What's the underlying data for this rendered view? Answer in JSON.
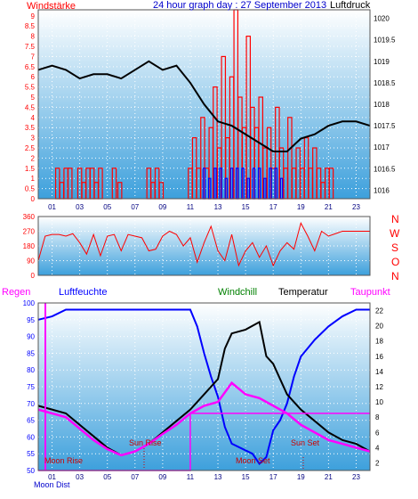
{
  "colors": {
    "wind_red": "#ff0000",
    "wind_blue": "#0000ff",
    "humidity_blue": "#0000ff",
    "dewpoint_magenta": "#ff00ff",
    "windchill_green": "#008000",
    "temperature_black": "#000000",
    "title_blue": "#0000cc",
    "plot_bg_top": "#ffffff",
    "plot_bg_bottom": "#3da0dc"
  },
  "top_panel": {
    "label_left": "Windstärke",
    "title": "24 hour graph day : 27 September 2013",
    "label_right": "Luftdruck"
  },
  "mid_panel": {
    "directions": [
      "N",
      "W",
      "S",
      "O",
      "N"
    ]
  },
  "bottom_panel": {
    "label_regen": "Regen",
    "label_luftfeuchte": "Luftfeuchte",
    "label_windchill": "Windchill",
    "label_temperatur": "Temperatur",
    "label_taupunkt": "Taupunkt",
    "ann_moon_rise": "Moon Rise",
    "ann_sun_rise": "Sun Rise",
    "ann_moon_set": "Moon Set",
    "ann_sun_set": "Sun Set",
    "bottom_left": "Moon Dist"
  },
  "chart_data": [
    {
      "id": "wind_pressure",
      "type": "line",
      "x_ticks": [
        "01",
        "03",
        "05",
        "07",
        "09",
        "11",
        "13",
        "15",
        "17",
        "19",
        "21",
        "23"
      ],
      "y_left_ticks": [
        "0",
        "0.5",
        "1",
        "1.5",
        "2",
        "2.5",
        "3",
        "3.5",
        "4",
        "4.5",
        "5",
        "5.5",
        "6",
        "6.5",
        "7",
        "7.5",
        "8",
        "8.5",
        "9"
      ],
      "y_right_ticks": [
        "1016",
        "1016.5",
        "1017",
        "1017.5",
        "1018",
        "1018.5",
        "1019",
        "1019.5",
        "1020"
      ],
      "ylim_left": [
        0,
        9.3
      ],
      "ylim_right": [
        1015.8,
        1020.2
      ],
      "xlim": [
        0,
        24
      ],
      "series": [
        {
          "kind": "wind_gust_red",
          "x": [
            1.4,
            1.7,
            2.0,
            2.3,
            3.0,
            3.3,
            3.6,
            3.9,
            4.2,
            4.5,
            5.5,
            5.9,
            8.0,
            8.3,
            8.6,
            8.9,
            11.0,
            11.3,
            11.6,
            11.9,
            12.2,
            12.5,
            12.8,
            13.1,
            13.4,
            13.7,
            14.0,
            14.3,
            14.6,
            14.9,
            15.2,
            15.5,
            15.8,
            16.1,
            16.4,
            16.7,
            17.0,
            17.3,
            17.6,
            17.9,
            18.2,
            18.5,
            18.8,
            19.1,
            19.4,
            19.7,
            20.0,
            20.3,
            20.6,
            20.9,
            21.2
          ],
          "values": [
            1.5,
            0.8,
            1.5,
            1.5,
            1.5,
            0.8,
            1.5,
            1.5,
            0.8,
            1.5,
            1.5,
            0.8,
            1.5,
            0.8,
            1.5,
            0.8,
            1.5,
            3.0,
            1.5,
            4.0,
            1.5,
            3.5,
            5.5,
            2.5,
            7.0,
            3.0,
            6.0,
            9.3,
            5.0,
            3.5,
            8.0,
            4.5,
            3.5,
            5.0,
            2.5,
            3.5,
            1.5,
            4.5,
            2.5,
            1.5,
            4.0,
            1.5,
            2.5,
            1.5,
            3.0,
            1.5,
            2.5,
            1.5,
            0.8,
            1.5,
            1.5
          ]
        },
        {
          "kind": "wind_avg_blue",
          "x": [
            12.0,
            12.4,
            12.8,
            13.2,
            13.6,
            14.0,
            14.4,
            14.8,
            15.2,
            15.6,
            16.0,
            16.4,
            16.8,
            17.2,
            17.6
          ],
          "values": [
            1.5,
            1.0,
            1.5,
            1.5,
            1.0,
            1.5,
            1.5,
            1.5,
            1.0,
            1.5,
            1.5,
            1.0,
            1.5,
            1.5,
            1.0
          ]
        },
        {
          "kind": "pressure",
          "name": "Luftdruck",
          "x": [
            0,
            1,
            2,
            3,
            4,
            5,
            6,
            7,
            8,
            9,
            10,
            11,
            12,
            13,
            14,
            15,
            16,
            17,
            18,
            19,
            20,
            21,
            22,
            23,
            24
          ],
          "values": [
            1018.8,
            1018.9,
            1018.8,
            1018.6,
            1018.7,
            1018.7,
            1018.6,
            1018.8,
            1019.0,
            1018.8,
            1018.9,
            1018.5,
            1018.0,
            1017.6,
            1017.5,
            1017.3,
            1017.1,
            1016.9,
            1016.9,
            1017.2,
            1017.3,
            1017.5,
            1017.6,
            1017.6,
            1017.5
          ]
        }
      ]
    },
    {
      "id": "wind_direction",
      "type": "line",
      "y_ticks": [
        "0",
        "90",
        "180",
        "270",
        "360"
      ],
      "ylim": [
        0,
        360
      ],
      "xlim": [
        0,
        24
      ],
      "series": [
        {
          "kind": "direction",
          "x": [
            0,
            0.5,
            1.0,
            1.5,
            2.0,
            2.5,
            3.0,
            3.5,
            4.0,
            4.5,
            5.0,
            5.5,
            6.0,
            6.5,
            7.0,
            7.5,
            8.0,
            8.5,
            9.0,
            9.5,
            10.0,
            10.5,
            11.0,
            11.5,
            12.0,
            12.5,
            13.0,
            13.5,
            14.0,
            14.5,
            15.0,
            15.5,
            16.0,
            16.5,
            17.0,
            17.5,
            18.0,
            18.5,
            19.0,
            19.5,
            20.0,
            20.5,
            21.0,
            22.0,
            23.0,
            24.0
          ],
          "values": [
            90,
            240,
            250,
            250,
            240,
            255,
            200,
            130,
            250,
            120,
            240,
            250,
            150,
            250,
            240,
            230,
            150,
            160,
            240,
            270,
            250,
            180,
            230,
            80,
            200,
            300,
            150,
            90,
            250,
            60,
            150,
            200,
            110,
            180,
            60,
            150,
            200,
            160,
            320,
            240,
            150,
            270,
            240,
            270,
            270,
            270
          ]
        }
      ]
    },
    {
      "id": "humidity_temperature",
      "type": "line",
      "y_left_ticks": [
        "50",
        "55",
        "60",
        "65",
        "70",
        "75",
        "80",
        "85",
        "90",
        "95",
        "100"
      ],
      "y_right_ticks": [
        "2",
        "4",
        "6",
        "8",
        "10",
        "12",
        "14",
        "16",
        "18",
        "20",
        "22"
      ],
      "ylim_left": [
        50,
        100
      ],
      "ylim_right": [
        1,
        23
      ],
      "xlim": [
        0,
        24
      ],
      "series": [
        {
          "name": "Luftfeuchte",
          "x": [
            0,
            1,
            2,
            3,
            4,
            5,
            6,
            8,
            10,
            11,
            11.5,
            12,
            12.5,
            13,
            13.5,
            14,
            15,
            15.5,
            16,
            16.5,
            17,
            17.5,
            18,
            18.5,
            19,
            20,
            21,
            22,
            23,
            24
          ],
          "values": [
            95,
            96,
            98,
            98,
            98,
            98,
            98,
            98,
            98,
            98,
            93,
            85,
            78,
            72,
            63,
            58,
            56,
            55,
            52,
            54,
            62,
            65,
            70,
            78,
            84,
            89,
            93,
            96,
            98,
            98
          ]
        },
        {
          "name": "Temperatur",
          "x": [
            0,
            1,
            2,
            3,
            4,
            5,
            6,
            7,
            8,
            9,
            10,
            11,
            12,
            13,
            13.5,
            14,
            15,
            16,
            16.5,
            17,
            17.5,
            18,
            19,
            20,
            21,
            22,
            23,
            24
          ],
          "values": [
            9.5,
            9.0,
            8.5,
            7.0,
            5.5,
            4.0,
            3.0,
            3.5,
            4.5,
            6.0,
            7.5,
            9.0,
            11.0,
            13.0,
            17.0,
            19.0,
            19.5,
            20.5,
            16.0,
            15.0,
            13.0,
            11.0,
            9.0,
            7.5,
            6.0,
            5.0,
            4.5,
            3.5
          ]
        },
        {
          "name": "Taupunkt",
          "x": [
            0,
            1,
            2,
            3,
            4,
            5,
            6,
            7,
            8,
            9,
            10,
            11,
            12,
            13,
            14,
            15,
            16,
            17,
            18,
            19,
            20,
            21,
            22,
            23,
            24
          ],
          "values": [
            9.0,
            8.5,
            8.0,
            6.5,
            5.0,
            3.8,
            3.0,
            3.5,
            4.5,
            5.8,
            7.0,
            8.5,
            9.5,
            10.0,
            12.5,
            11.0,
            10.5,
            9.5,
            8.5,
            7.0,
            6.0,
            5.0,
            4.5,
            4.0,
            3.5
          ]
        },
        {
          "name": "Regen",
          "x": [
            0,
            11,
            11,
            24
          ],
          "values": [
            1,
            1,
            8.5,
            8.5
          ]
        }
      ]
    }
  ]
}
